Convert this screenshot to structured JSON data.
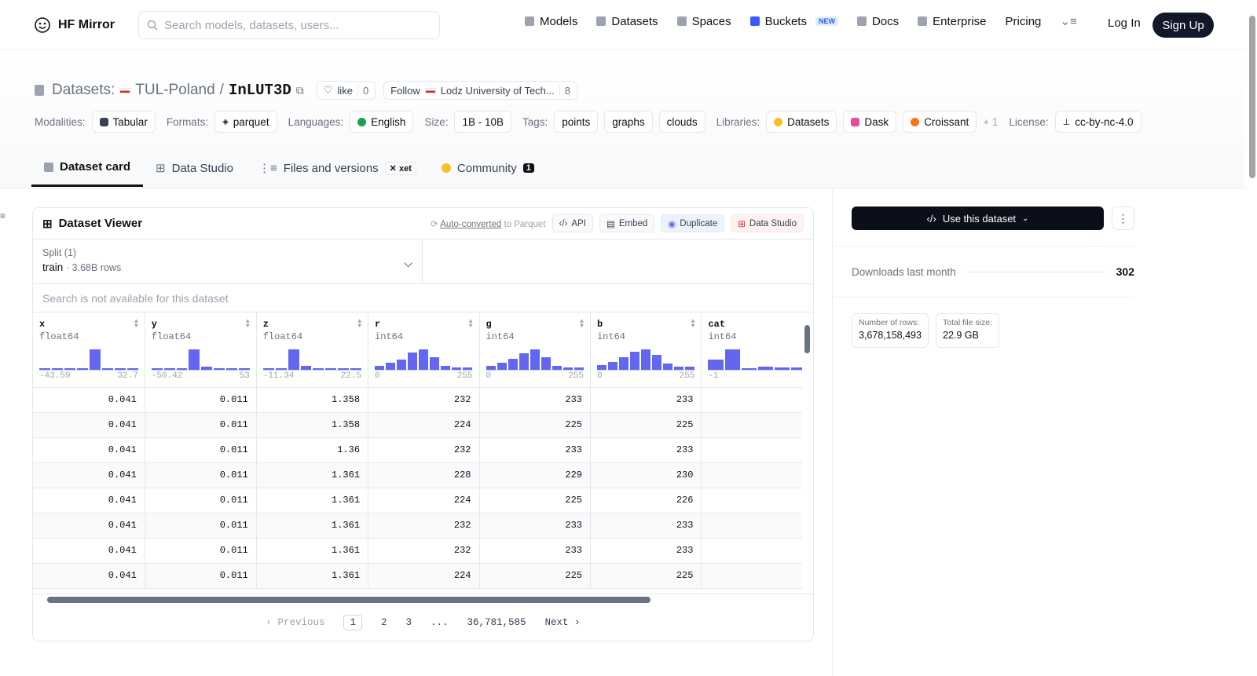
{
  "nav": {
    "brand": "HF Mirror",
    "search_placeholder": "Search models, datasets, users...",
    "links": [
      {
        "label": "Models",
        "icon": "models-icon"
      },
      {
        "label": "Datasets",
        "icon": "datasets-icon"
      },
      {
        "label": "Spaces",
        "icon": "spaces-icon"
      },
      {
        "label": "Buckets",
        "icon": "buckets-icon",
        "badge": "NEW"
      },
      {
        "label": "Docs",
        "icon": "docs-icon"
      },
      {
        "label": "Enterprise",
        "icon": "enterprise-icon"
      },
      {
        "label": "Pricing"
      }
    ],
    "login": "Log In",
    "signup": "Sign Up"
  },
  "dataset": {
    "prefix": "Datasets:",
    "owner": "TUL-Poland",
    "name": "InLUT3D",
    "like_label": "like",
    "like_count": "0",
    "follow_label": "Follow",
    "follow_org": "Lodz University of Tech...",
    "follow_count": "8"
  },
  "tags": {
    "modalities_label": "Modalities:",
    "modality": "Tabular",
    "formats_label": "Formats:",
    "format": "parquet",
    "languages_label": "Languages:",
    "language": "English",
    "size_label": "Size:",
    "size": "1B - 10B",
    "tags_label": "Tags:",
    "tag_list": [
      "points",
      "graphs",
      "clouds"
    ],
    "libraries_label": "Libraries:",
    "library_list": [
      "Datasets",
      "Dask",
      "Croissant"
    ],
    "more": "+ 1",
    "license_label": "License:",
    "license": "cc-by-nc-4.0"
  },
  "tabs": [
    {
      "label": "Dataset card",
      "active": true
    },
    {
      "label": "Data Studio"
    },
    {
      "label": "Files and versions",
      "badge": "xet"
    },
    {
      "label": "Community",
      "badge": "1"
    }
  ],
  "viewer": {
    "title": "Dataset Viewer",
    "auto_converted": "Auto-converted",
    "auto_suffix": "to Parquet",
    "api": "API",
    "embed": "Embed",
    "duplicate": "Duplicate",
    "data_studio": "Data Studio",
    "split_label": "Split (1)",
    "split_value": "train",
    "split_rows": "3.68B rows",
    "search_notice": "Search is not available for this dataset",
    "columns": [
      {
        "name": "x",
        "dtype": "float64",
        "min": "-43.59",
        "max": "32.7",
        "hist": [
          0.05,
          0.05,
          0.05,
          0.05,
          1.0,
          0.05,
          0.05,
          0.05
        ]
      },
      {
        "name": "y",
        "dtype": "float64",
        "min": "-50.42",
        "max": "53",
        "hist": [
          0.05,
          0.05,
          0.05,
          1.0,
          0.15,
          0.05,
          0.05,
          0.05
        ]
      },
      {
        "name": "z",
        "dtype": "float64",
        "min": "-11.34",
        "max": "22.5",
        "hist": [
          0.05,
          0.05,
          1.0,
          0.2,
          0.05,
          0.05,
          0.05,
          0.05
        ]
      },
      {
        "name": "r",
        "dtype": "int64",
        "min": "0",
        "max": "255",
        "hist": [
          0.2,
          0.35,
          0.5,
          0.85,
          1.0,
          0.6,
          0.2,
          0.1,
          0.1
        ]
      },
      {
        "name": "g",
        "dtype": "int64",
        "min": "0",
        "max": "255",
        "hist": [
          0.2,
          0.35,
          0.55,
          0.8,
          1.0,
          0.6,
          0.2,
          0.1,
          0.1
        ]
      },
      {
        "name": "b",
        "dtype": "int64",
        "min": "0",
        "max": "255",
        "hist": [
          0.25,
          0.4,
          0.6,
          0.9,
          1.0,
          0.75,
          0.3,
          0.15,
          0.15
        ]
      },
      {
        "name": "cat",
        "dtype": "int64",
        "min": "-1",
        "max": "",
        "hist": [
          0.5,
          1.0,
          0.05,
          0.15,
          0.1,
          0.1
        ]
      }
    ],
    "rows": [
      [
        "0.041",
        "0.011",
        "1.358",
        "232",
        "233",
        "233",
        ""
      ],
      [
        "0.041",
        "0.011",
        "1.358",
        "224",
        "225",
        "225",
        ""
      ],
      [
        "0.041",
        "0.011",
        "1.36",
        "232",
        "233",
        "233",
        ""
      ],
      [
        "0.041",
        "0.011",
        "1.361",
        "228",
        "229",
        "230",
        ""
      ],
      [
        "0.041",
        "0.011",
        "1.361",
        "224",
        "225",
        "226",
        ""
      ],
      [
        "0.041",
        "0.011",
        "1.361",
        "232",
        "233",
        "233",
        ""
      ],
      [
        "0.041",
        "0.011",
        "1.361",
        "232",
        "233",
        "233",
        ""
      ],
      [
        "0.041",
        "0.011",
        "1.361",
        "224",
        "225",
        "225",
        ""
      ]
    ],
    "pager": {
      "previous": "Previous",
      "pages": [
        "1",
        "2",
        "3",
        "...",
        "36,781,585"
      ],
      "current": "1",
      "next": "Next"
    }
  },
  "sidebar": {
    "use_button": "Use this dataset",
    "downloads_label": "Downloads last month",
    "downloads_value": "302",
    "rows_label": "Number of rows:",
    "rows_value": "3,678,158,493",
    "size_label": "Total file size:",
    "size_value": "22.9 GB"
  }
}
